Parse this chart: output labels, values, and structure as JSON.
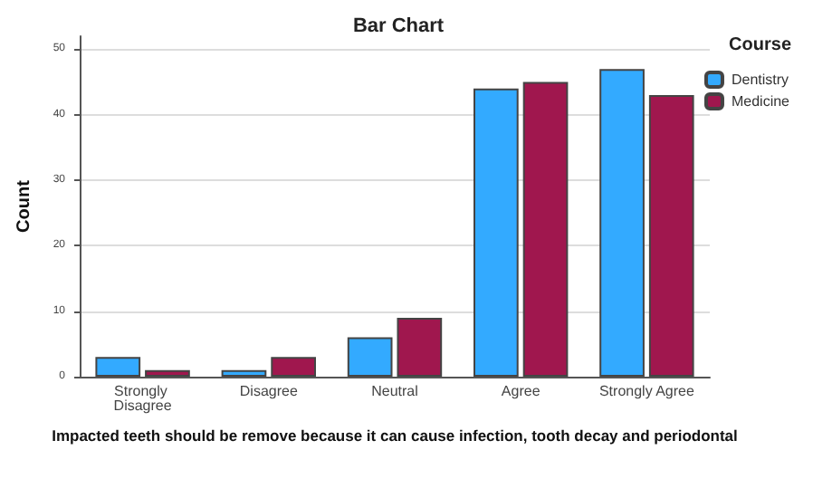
{
  "chart_data": {
    "type": "bar",
    "title": "Bar Chart",
    "xlabel": "Impacted teeth should be remove because it can cause infection, tooth decay and periodontal",
    "ylabel": "Count",
    "legend_title": "Course",
    "categories": [
      "Strongly Disagree",
      "Disagree",
      "Neutral",
      "Agree",
      "Strongly Agree"
    ],
    "series": [
      {
        "name": "Dentistry",
        "color": "#33aaff",
        "values": [
          3,
          1,
          6,
          44,
          47
        ]
      },
      {
        "name": "Medicine",
        "color": "#a0174e",
        "values": [
          1,
          3,
          9,
          45,
          43
        ]
      }
    ],
    "ylim": [
      0,
      52
    ],
    "yticks": [
      0,
      10,
      20,
      30,
      40,
      50
    ],
    "grid": "y",
    "legend": "top right"
  }
}
